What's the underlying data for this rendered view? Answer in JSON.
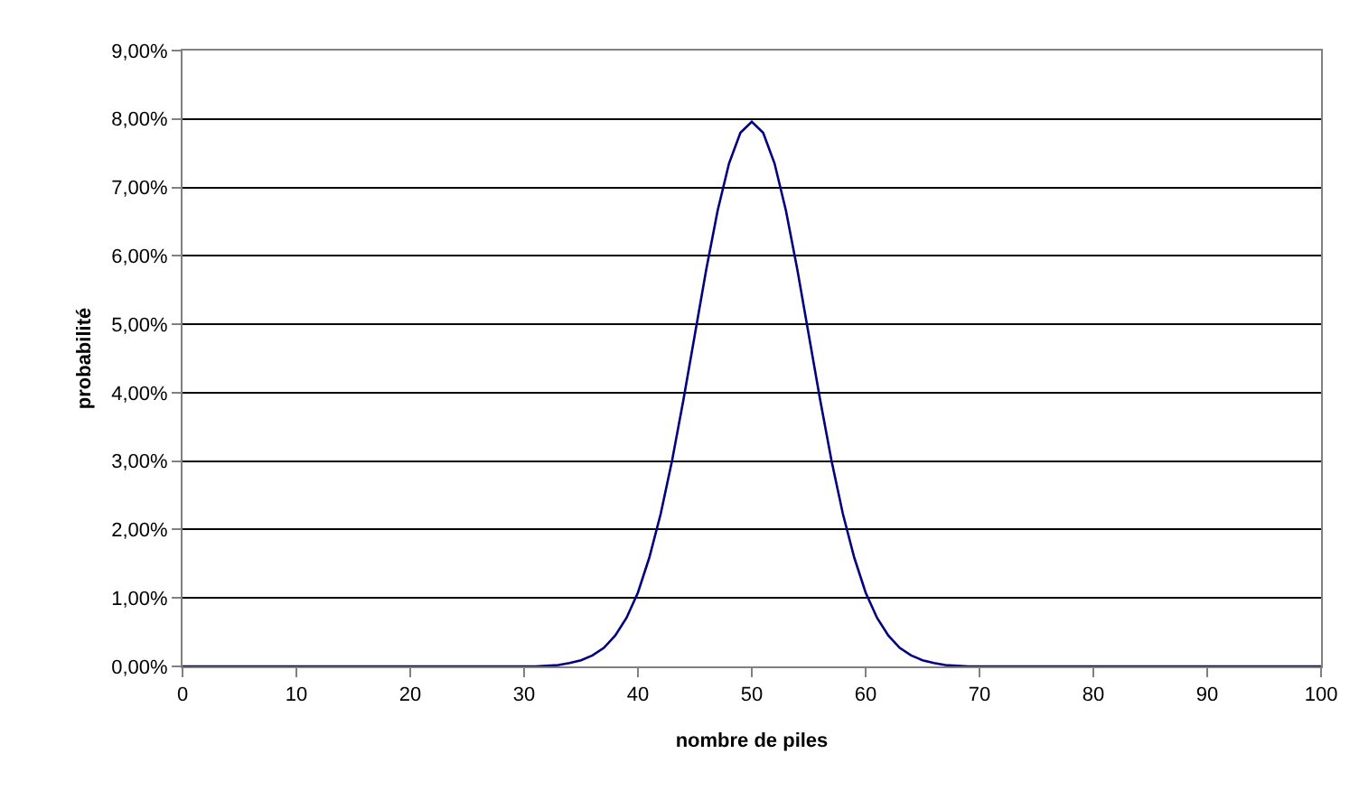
{
  "chart_data": {
    "type": "line",
    "xlabel": "nombre de piles",
    "ylabel": "probabilité",
    "x": [
      0,
      10,
      20,
      30,
      31,
      32,
      33,
      34,
      35,
      36,
      37,
      38,
      39,
      40,
      41,
      42,
      43,
      44,
      45,
      46,
      47,
      48,
      49,
      50,
      51,
      52,
      53,
      54,
      55,
      56,
      57,
      58,
      59,
      60,
      61,
      62,
      63,
      64,
      65,
      66,
      67,
      68,
      69,
      70,
      80,
      90,
      100
    ],
    "series": [
      {
        "color": "#000080",
        "values": [
          0,
          0,
          0,
          0,
          0,
          0.01,
          0.02,
          0.05,
          0.09,
          0.16,
          0.27,
          0.45,
          0.71,
          1.08,
          1.59,
          2.23,
          3.01,
          3.9,
          4.85,
          5.8,
          6.66,
          7.35,
          7.8,
          7.96,
          7.8,
          7.35,
          6.66,
          5.8,
          4.85,
          3.9,
          3.01,
          2.23,
          1.59,
          1.08,
          0.71,
          0.45,
          0.27,
          0.16,
          0.09,
          0.05,
          0.02,
          0.01,
          0,
          0,
          0,
          0,
          0
        ]
      }
    ],
    "xlim": [
      0,
      100
    ],
    "xticks": [
      0,
      10,
      20,
      30,
      40,
      50,
      60,
      70,
      80,
      90,
      100
    ],
    "ylim": [
      0,
      9
    ],
    "yticks": [
      {
        "value": 0,
        "label": "0,00%"
      },
      {
        "value": 1,
        "label": "1,00%"
      },
      {
        "value": 2,
        "label": "2,00%"
      },
      {
        "value": 3,
        "label": "3,00%"
      },
      {
        "value": 4,
        "label": "4,00%"
      },
      {
        "value": 5,
        "label": "5,00%"
      },
      {
        "value": 6,
        "label": "6,00%"
      },
      {
        "value": 7,
        "label": "7,00%"
      },
      {
        "value": 8,
        "label": "8,00%"
      },
      {
        "value": 9,
        "label": "9,00%"
      }
    ],
    "grid": "y",
    "marker": "none",
    "line_style": "solid"
  }
}
